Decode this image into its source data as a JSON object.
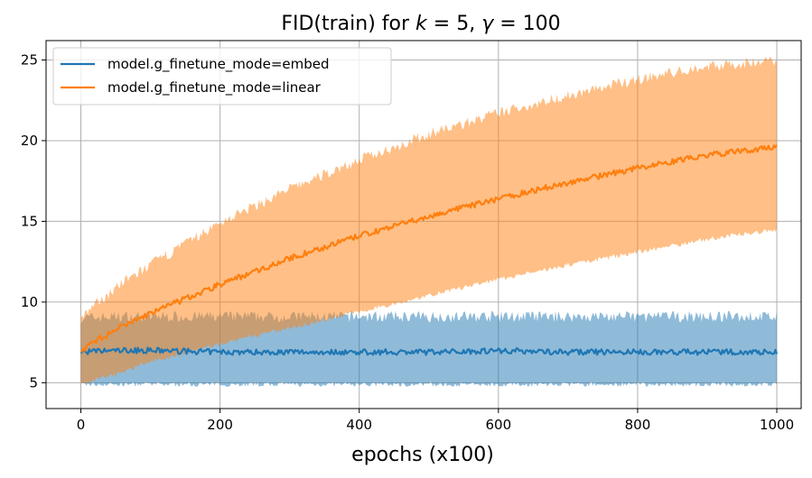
{
  "chart_data": {
    "type": "line",
    "title_prefix": "FID(train) for ",
    "title_k_sym": "k",
    "title_k_val": " = 5, ",
    "title_gamma_sym": "γ",
    "title_gamma_val": " = 100",
    "xlabel": "epochs (x100)",
    "ylabel": "",
    "xlim": [
      -50,
      1035
    ],
    "ylim": [
      3.4,
      26.2
    ],
    "xticks": [
      0,
      200,
      400,
      600,
      800,
      1000
    ],
    "yticks": [
      5,
      10,
      15,
      20,
      25
    ],
    "grid": true,
    "legend_position": "top-left",
    "series": [
      {
        "name": "model.g_finetune_mode=embed",
        "color": "#1f77b4",
        "band_color": "#1f77b4",
        "x": [
          0,
          50,
          100,
          200,
          300,
          400,
          500,
          600,
          700,
          800,
          900,
          1000
        ],
        "mean": [
          6.9,
          7.0,
          7.0,
          6.9,
          6.9,
          6.9,
          6.9,
          7.0,
          6.9,
          6.9,
          6.9,
          6.9
        ],
        "upper": [
          9.0,
          9.1,
          9.1,
          9.1,
          9.1,
          9.1,
          9.1,
          9.1,
          9.1,
          9.1,
          9.1,
          9.1
        ],
        "lower": [
          4.9,
          4.9,
          4.9,
          4.9,
          4.9,
          4.9,
          4.9,
          4.9,
          4.9,
          4.9,
          4.9,
          4.9
        ]
      },
      {
        "name": "model.g_finetune_mode=linear",
        "color": "#ff7f0e",
        "band_color": "#ff7f0e",
        "x": [
          0,
          50,
          100,
          200,
          300,
          400,
          500,
          600,
          700,
          800,
          900,
          1000
        ],
        "mean": [
          7.0,
          8.3,
          9.3,
          11.1,
          12.7,
          14.1,
          15.3,
          16.4,
          17.4,
          18.3,
          19.1,
          19.6
        ],
        "upper": [
          9.0,
          10.9,
          12.3,
          14.9,
          17.0,
          18.8,
          20.4,
          21.7,
          22.8,
          23.8,
          24.6,
          25.0
        ],
        "lower": [
          5.0,
          5.5,
          6.3,
          7.4,
          8.4,
          9.4,
          10.4,
          11.4,
          12.3,
          13.1,
          13.9,
          14.5
        ]
      }
    ]
  }
}
